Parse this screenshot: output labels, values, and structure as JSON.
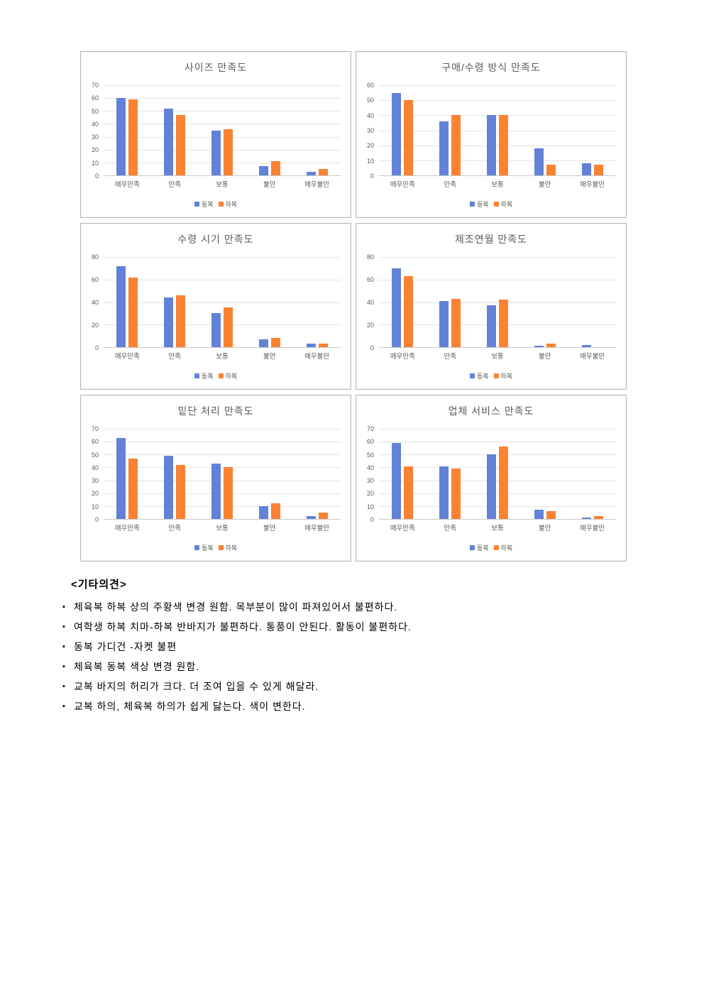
{
  "colors": {
    "series1": "#6282d8",
    "series2": "#fb8233",
    "gridline": "#e4e4e4",
    "axis_text": "#595959",
    "panel_border": "#b9b9b9"
  },
  "chart_data": [
    {
      "type": "bar",
      "title": "사이즈 만족도",
      "categories": [
        "매우만족",
        "만족",
        "보통",
        "불만",
        "매우불만"
      ],
      "series": [
        {
          "name": "동복",
          "values": [
            60,
            52,
            35,
            7,
            3
          ]
        },
        {
          "name": "하복",
          "values": [
            59,
            47,
            36,
            11,
            5
          ]
        }
      ],
      "ylim": [
        0,
        70
      ],
      "ystep": 10,
      "grid": true,
      "legend_position": "bottom"
    },
    {
      "type": "bar",
      "title": "구매/수령 방식 만족도",
      "categories": [
        "매우만족",
        "만족",
        "보통",
        "불만",
        "매우불만"
      ],
      "series": [
        {
          "name": "동복",
          "values": [
            55,
            36,
            40,
            18,
            8
          ]
        },
        {
          "name": "하복",
          "values": [
            50,
            40,
            40,
            7,
            7
          ]
        }
      ],
      "ylim": [
        0,
        60
      ],
      "ystep": 10,
      "grid": true,
      "legend_position": "bottom"
    },
    {
      "type": "bar",
      "title": "수령 시기 만족도",
      "categories": [
        "매우만족",
        "만족",
        "보통",
        "불만",
        "매우불만"
      ],
      "series": [
        {
          "name": "동복",
          "values": [
            72,
            44,
            30,
            7,
            3
          ]
        },
        {
          "name": "하복",
          "values": [
            62,
            46,
            35,
            8,
            3
          ]
        }
      ],
      "ylim": [
        0,
        80
      ],
      "ystep": 20,
      "grid": true,
      "legend_position": "bottom"
    },
    {
      "type": "bar",
      "title": "제조연월 만족도",
      "categories": [
        "매우만족",
        "만족",
        "보통",
        "불만",
        "매우불만"
      ],
      "series": [
        {
          "name": "동복",
          "values": [
            70,
            41,
            37,
            1,
            2
          ]
        },
        {
          "name": "하복",
          "values": [
            63,
            43,
            42,
            3,
            0
          ]
        }
      ],
      "ylim": [
        0,
        80
      ],
      "ystep": 20,
      "grid": true,
      "legend_position": "bottom"
    },
    {
      "type": "bar",
      "title": "밑단 처리 만족도",
      "categories": [
        "매우만족",
        "만족",
        "보통",
        "불만",
        "매우불만"
      ],
      "series": [
        {
          "name": "동복",
          "values": [
            63,
            49,
            43,
            10,
            2
          ]
        },
        {
          "name": "하복",
          "values": [
            47,
            42,
            40,
            12,
            5
          ]
        }
      ],
      "ylim": [
        0,
        70
      ],
      "ystep": 10,
      "grid": true,
      "legend_position": "bottom"
    },
    {
      "type": "bar",
      "title": "업체 서비스 만족도",
      "categories": [
        "매우만족",
        "만족",
        "보통",
        "불만",
        "매우불만"
      ],
      "series": [
        {
          "name": "동복",
          "values": [
            59,
            41,
            50,
            7,
            1
          ]
        },
        {
          "name": "하복",
          "values": [
            41,
            39,
            56,
            6,
            2
          ]
        }
      ],
      "ylim": [
        0,
        70
      ],
      "ystep": 10,
      "grid": true,
      "legend_position": "bottom"
    }
  ],
  "opinions": {
    "title": "<기타의견>",
    "items": [
      "체육복 하복 상의 주황색 변경 원함. 목부분이 많이 파져있어서 불편하다.",
      "여학생 하복 치마-하복 반바지가 불편하다. 통풍이 안된다. 활동이 불편하다.",
      "동복 가디건 -자켓 불편",
      "체육복 동복 색상 변경 원함.",
      "교복 바지의 허리가 크다. 더 조여 입을 수 있게 해달라.",
      "교복 하의, 체육복 하의가 쉽게 닳는다. 색이 변한다."
    ]
  }
}
